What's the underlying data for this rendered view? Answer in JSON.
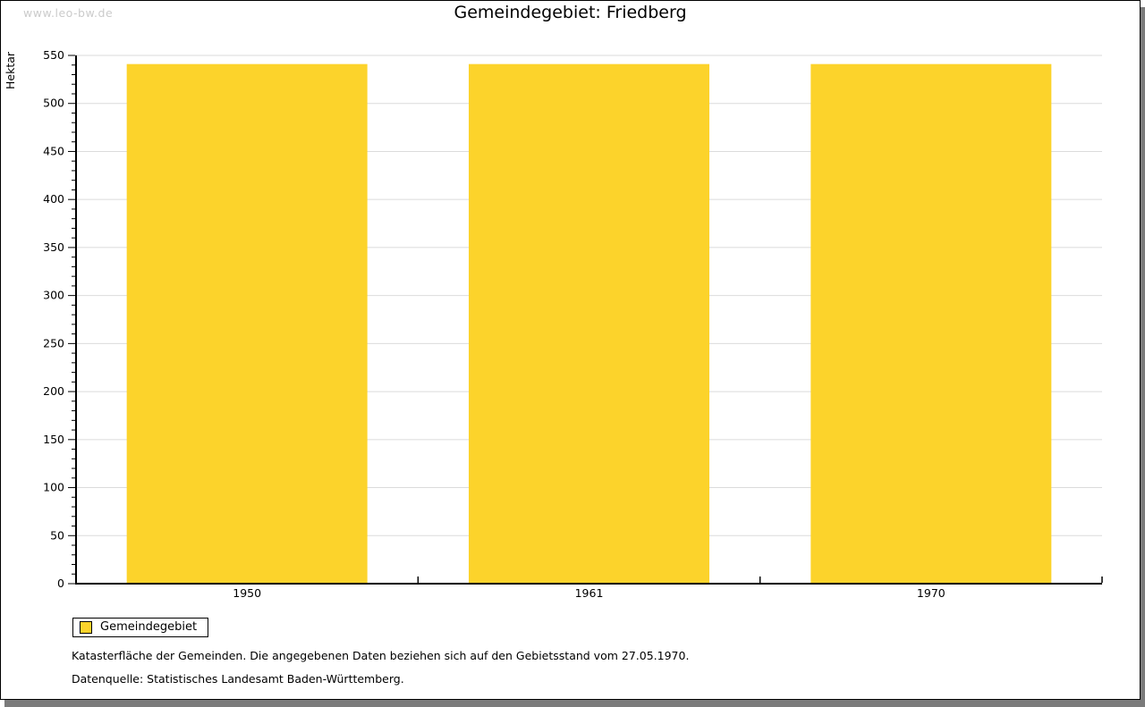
{
  "frame": {
    "watermark": "www.leo-bw.de",
    "title": "Gemeindegebiet: Friedberg"
  },
  "chart_data": {
    "type": "bar",
    "title": "Gemeindegebiet: Friedberg",
    "categories": [
      "1950",
      "1961",
      "1970"
    ],
    "series": [
      {
        "name": "Gemeindegebiet",
        "values": [
          541,
          541,
          541
        ],
        "color": "#FCD32B"
      }
    ],
    "xlabel": "",
    "ylabel": "Hektar",
    "ylim": [
      0,
      550
    ],
    "ytick_step": 50,
    "yminor_step": 10,
    "grid": true,
    "grid_color": "#DBDBDB",
    "axis_color": "#000000",
    "legend_position": "bottom-left"
  },
  "legend": {
    "items": [
      {
        "label": "Gemeindegebiet",
        "color": "#FCD32B"
      }
    ]
  },
  "footnotes": {
    "line1": "Katasterfläche der Gemeinden. Die angegebenen Daten beziehen sich auf den Gebietsstand vom 27.05.1970.",
    "line2": "Datenquelle: Statistisches Landesamt Baden-Württemberg."
  }
}
